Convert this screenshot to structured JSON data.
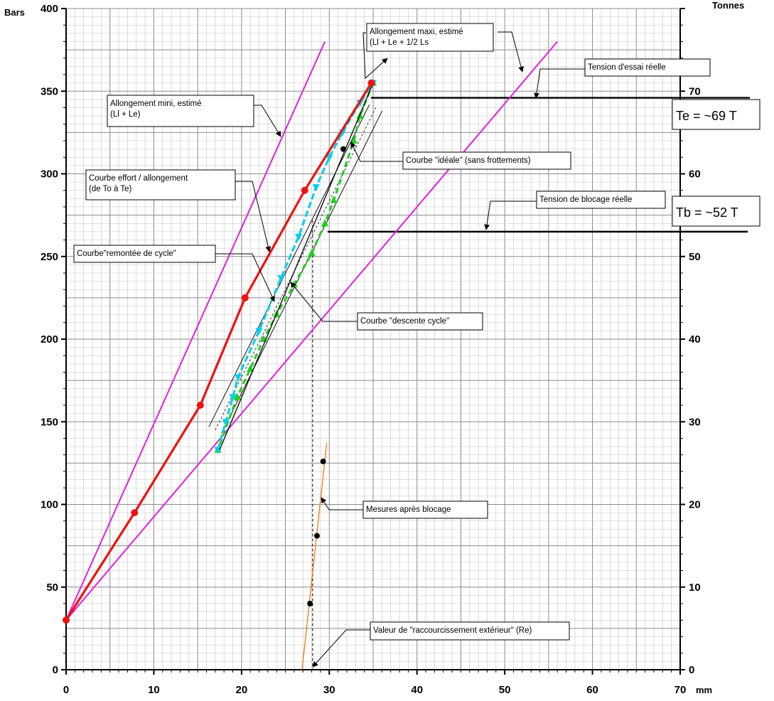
{
  "chart_data": {
    "type": "line",
    "title": "",
    "x_axis": {
      "unit": "mm",
      "range": [
        0,
        70
      ],
      "ticks": [
        0,
        10,
        20,
        30,
        40,
        50,
        60,
        70
      ]
    },
    "y_axis_left": {
      "unit": "Bars",
      "range": [
        0,
        400
      ],
      "ticks": [
        0,
        50,
        100,
        150,
        200,
        250,
        300,
        350,
        400
      ]
    },
    "y_axis_right": {
      "unit": "Tonnes",
      "range": [
        0,
        80
      ],
      "ticks": [
        0,
        10,
        20,
        30,
        40,
        50,
        60,
        70
      ]
    },
    "grid": true,
    "series": [
      {
        "label": "Courbe effort / allongement (de To à Te)",
        "color": "#ee1111",
        "style": "line-markers",
        "points": [
          [
            0,
            30
          ],
          [
            7.8,
            95
          ],
          [
            15.3,
            160
          ],
          [
            20.4,
            225
          ],
          [
            27.2,
            290
          ],
          [
            34.8,
            355
          ]
        ]
      },
      {
        "label": "Allongement mini, estimé (Ll + Le)",
        "color": "#e020e0",
        "style": "line",
        "points": [
          [
            0,
            30
          ],
          [
            29.5,
            380
          ]
        ]
      },
      {
        "label": "Allongement maxi, estimé (Ll + Le + 1/2 Ls)",
        "color": "#e020e0",
        "style": "line",
        "points": [
          [
            0,
            30
          ],
          [
            56,
            380
          ]
        ]
      },
      {
        "label": "Courbe\"remontée de cycle\"",
        "color": "#00cfe8",
        "style": "line-markers",
        "points": [
          [
            17.3,
            133
          ],
          [
            18.2,
            150
          ],
          [
            19.0,
            165
          ],
          [
            19.6,
            177
          ],
          [
            22.0,
            205
          ],
          [
            24.5,
            237
          ],
          [
            26.5,
            262
          ],
          [
            28.5,
            292
          ],
          [
            30.0,
            310
          ],
          [
            31.5,
            325
          ],
          [
            33.5,
            343
          ],
          [
            35.0,
            355
          ]
        ]
      },
      {
        "label": "Courbe \"descente cycle\"",
        "color": "#22cc22",
        "style": "line-markers",
        "points": [
          [
            35.0,
            355
          ],
          [
            33.5,
            335
          ],
          [
            32.8,
            320
          ],
          [
            30.5,
            284
          ],
          [
            29.5,
            270
          ],
          [
            28.0,
            252
          ],
          [
            26.0,
            233
          ],
          [
            24.0,
            215
          ],
          [
            22.5,
            200
          ],
          [
            21.0,
            182
          ],
          [
            19.5,
            165
          ],
          [
            17.3,
            133
          ]
        ]
      },
      {
        "label": "Courbe \"idéale\" (sans frottements)",
        "color": "#111111",
        "style": "line",
        "points": [
          [
            17.5,
            133
          ],
          [
            35.0,
            355
          ]
        ]
      },
      {
        "label": "Mesures après blocage",
        "color": "#ff6600",
        "style": "line",
        "points": [
          [
            26.9,
            0
          ],
          [
            29.7,
            137
          ]
        ]
      }
    ],
    "measure_points": [
      [
        27.8,
        40
      ],
      [
        28.6,
        81
      ],
      [
        29.3,
        126
      ],
      [
        31.6,
        315
      ]
    ],
    "tension_lines": [
      {
        "label": "Tension d'essai réelle",
        "value_bars": 346,
        "box_text": "Te = ~69 T"
      },
      {
        "label": "Tension de blocage réelle",
        "value_bars": 265,
        "box_text": "Tb = ~52 T"
      }
    ],
    "re_value_mm": 28.1,
    "annotations": [
      {
        "id": "mini",
        "lines": [
          "Allongement mini, estimé",
          "(Ll + Le)"
        ]
      },
      {
        "id": "maxi",
        "lines": [
          "Allongement maxi, estimé",
          "(Ll + Le + 1/2 Ls"
        ]
      },
      {
        "id": "tension-essai",
        "lines": [
          "Tension d'essai réelle"
        ]
      },
      {
        "id": "ideale",
        "lines": [
          "Courbe \"idéale\" (sans frottements)"
        ]
      },
      {
        "id": "effort",
        "lines": [
          "Courbe effort / allongement",
          "(de To à Te)"
        ]
      },
      {
        "id": "tension-blocage",
        "lines": [
          "Tension de blocage réelle"
        ]
      },
      {
        "id": "remontee",
        "lines": [
          "Courbe\"remontée de cycle\""
        ]
      },
      {
        "id": "descente",
        "lines": [
          "Courbe \"descente cycle\""
        ]
      },
      {
        "id": "mesures",
        "lines": [
          "Mesures après blocage"
        ]
      },
      {
        "id": "raccourcissement",
        "lines": [
          "Valeur de \"raccourcissement extérieur\" (Re)"
        ]
      }
    ]
  }
}
